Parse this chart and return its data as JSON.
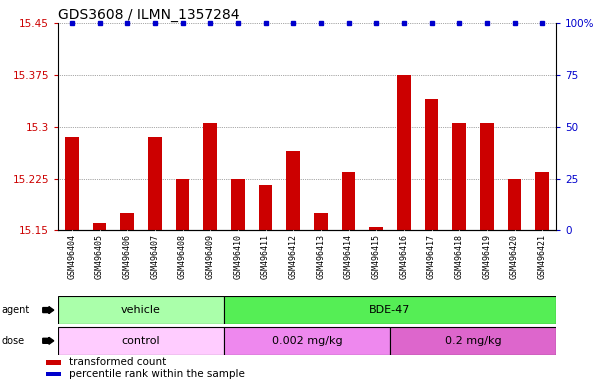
{
  "title": "GDS3608 / ILMN_1357284",
  "samples": [
    "GSM496404",
    "GSM496405",
    "GSM496406",
    "GSM496407",
    "GSM496408",
    "GSM496409",
    "GSM496410",
    "GSM496411",
    "GSM496412",
    "GSM496413",
    "GSM496414",
    "GSM496415",
    "GSM496416",
    "GSM496417",
    "GSM496418",
    "GSM496419",
    "GSM496420",
    "GSM496421"
  ],
  "transformed_counts": [
    15.285,
    15.16,
    15.175,
    15.285,
    15.225,
    15.305,
    15.225,
    15.215,
    15.265,
    15.175,
    15.235,
    15.155,
    15.375,
    15.34,
    15.305,
    15.305,
    15.225,
    15.235
  ],
  "percentile_ranks": [
    100,
    100,
    100,
    100,
    100,
    100,
    100,
    100,
    100,
    100,
    100,
    100,
    100,
    100,
    100,
    100,
    100,
    100
  ],
  "ylim": [
    15.15,
    15.45
  ],
  "yticks": [
    15.15,
    15.225,
    15.3,
    15.375,
    15.45
  ],
  "ytick_labels": [
    "15.15",
    "15.225",
    "15.3",
    "15.375",
    "15.45"
  ],
  "y2lim": [
    0,
    100
  ],
  "y2ticks": [
    0,
    25,
    50,
    75,
    100
  ],
  "y2tick_labels": [
    "0",
    "25",
    "50",
    "75",
    "100%"
  ],
  "bar_color": "#cc0000",
  "dot_color": "#0000cc",
  "agent_groups": [
    {
      "label": "vehicle",
      "start": 0,
      "end": 6,
      "color": "#aaffaa"
    },
    {
      "label": "BDE-47",
      "start": 6,
      "end": 18,
      "color": "#55ee55"
    }
  ],
  "dose_groups": [
    {
      "label": "control",
      "start": 0,
      "end": 6,
      "color": "#ffccff"
    },
    {
      "label": "0.002 mg/kg",
      "start": 6,
      "end": 12,
      "color": "#ee88ee"
    },
    {
      "label": "0.2 mg/kg",
      "start": 12,
      "end": 18,
      "color": "#dd66cc"
    }
  ],
  "legend_items": [
    {
      "color": "#cc0000",
      "label": "transformed count"
    },
    {
      "color": "#0000cc",
      "label": "percentile rank within the sample"
    }
  ],
  "grid_color": "#555555",
  "bg_color": "#ffffff",
  "xticklabel_bg": "#cccccc",
  "title_fontsize": 10,
  "tick_fontsize": 7.5,
  "label_fontsize": 7.5,
  "xtick_fontsize": 6,
  "agent_fontsize": 8,
  "dose_fontsize": 8,
  "legend_fontsize": 7.5
}
